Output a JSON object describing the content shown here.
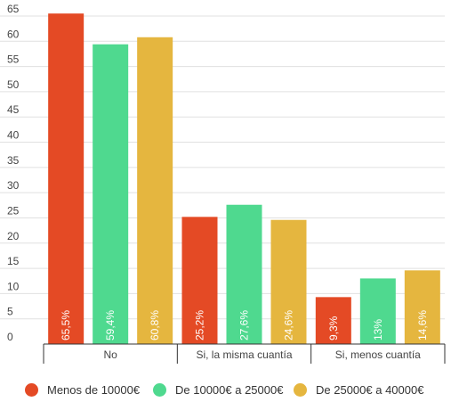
{
  "chart_data": {
    "type": "bar",
    "categories": [
      "No",
      "Si, la misma cuantía",
      "Si, menos cuantía"
    ],
    "series": [
      {
        "name": "Menos de 10000€",
        "color": "#e44a25",
        "values": [
          65.5,
          25.2,
          9.3
        ],
        "labels": [
          "65,5%",
          "25,2%",
          "9,3%"
        ]
      },
      {
        "name": "De 10000€ a 25000€",
        "color": "#4fd98f",
        "values": [
          59.4,
          27.6,
          13
        ],
        "labels": [
          "59,4%",
          "27,6%",
          "13%"
        ]
      },
      {
        "name": "De 25000€ a 40000€",
        "color": "#e5b63f",
        "values": [
          60.8,
          24.6,
          14.6
        ],
        "labels": [
          "60,8%",
          "24,6%",
          "14,6%"
        ]
      }
    ],
    "ylim": [
      0,
      65
    ],
    "yticks": [
      0,
      5,
      10,
      15,
      20,
      25,
      30,
      35,
      40,
      45,
      50,
      55,
      60,
      65
    ],
    "grid": true,
    "legend_position": "bottom"
  }
}
